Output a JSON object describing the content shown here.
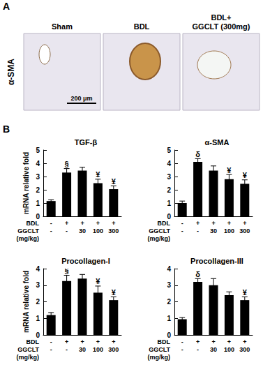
{
  "figure": {
    "panel_labels": [
      "A",
      "B"
    ],
    "panel_a": {
      "stain": "α-SMA",
      "columns": [
        "Sham",
        "BDL",
        "BDL+\nGGCLT (300mg)"
      ],
      "scale_bar": "200 μm"
    }
  },
  "chart_data": [
    {
      "type": "bar",
      "title": "TGF-β",
      "ylabel": "mRNA relative fold",
      "categories": [
        "-\n-",
        "+\n-",
        "+\n30",
        "+\n100",
        "+\n300"
      ],
      "category_rows": [
        "BDL",
        "GGCLT\n(mg/kg)"
      ],
      "values": [
        1.15,
        3.3,
        3.45,
        2.5,
        2.05
      ],
      "errors": [
        0.1,
        0.3,
        0.25,
        0.3,
        0.25
      ],
      "annotations": [
        null,
        "§",
        null,
        "¥",
        "¥"
      ],
      "color": "#000000",
      "ylim": [
        0,
        5
      ],
      "yticks": [
        0,
        1,
        2,
        3,
        4,
        5
      ],
      "grid": false
    },
    {
      "type": "bar",
      "title": "α-SMA",
      "categories": [
        "-\n-",
        "+\n-",
        "+\n30",
        "+\n100",
        "+\n300"
      ],
      "category_rows": [
        "BDL",
        "GGCLT\n(mg/kg)"
      ],
      "values": [
        1.0,
        4.1,
        3.45,
        2.8,
        2.45
      ],
      "errors": [
        0.15,
        0.25,
        0.35,
        0.35,
        0.3
      ],
      "annotations": [
        null,
        "δ",
        null,
        "¥",
        "¥"
      ],
      "color": "#000000",
      "ylim": [
        0,
        5
      ],
      "yticks": [
        0,
        1,
        2,
        3,
        4,
        5
      ],
      "grid": false
    },
    {
      "type": "bar",
      "title": "Procollagen-I",
      "ylabel": "mRNA relative fold",
      "categories": [
        "-\n-",
        "+\n-",
        "+\n30",
        "+\n100",
        "+\n300"
      ],
      "category_rows": [
        "BDL",
        "GGCLT\n(mg/kg)"
      ],
      "values": [
        1.2,
        3.25,
        3.4,
        2.55,
        2.1
      ],
      "errors": [
        0.15,
        0.35,
        0.25,
        0.4,
        0.2
      ],
      "annotations": [
        null,
        "§",
        null,
        "¥",
        "¥"
      ],
      "color": "#000000",
      "ylim": [
        0,
        4
      ],
      "yticks": [
        0,
        1,
        2,
        3,
        4
      ],
      "grid": false
    },
    {
      "type": "bar",
      "title": "Procollagen-III",
      "categories": [
        "-\n-",
        "+\n-",
        "+\n30",
        "+\n100",
        "+\n300"
      ],
      "category_rows": [
        "BDL",
        "GGCLT\n(mg/kg)"
      ],
      "values": [
        0.95,
        3.2,
        3.0,
        2.4,
        2.1
      ],
      "errors": [
        0.1,
        0.2,
        0.4,
        0.2,
        0.2
      ],
      "annotations": [
        null,
        "δ",
        null,
        null,
        "¥"
      ],
      "color": "#000000",
      "ylim": [
        0,
        4
      ],
      "yticks": [
        0,
        1,
        2,
        3,
        4
      ],
      "grid": false
    }
  ]
}
